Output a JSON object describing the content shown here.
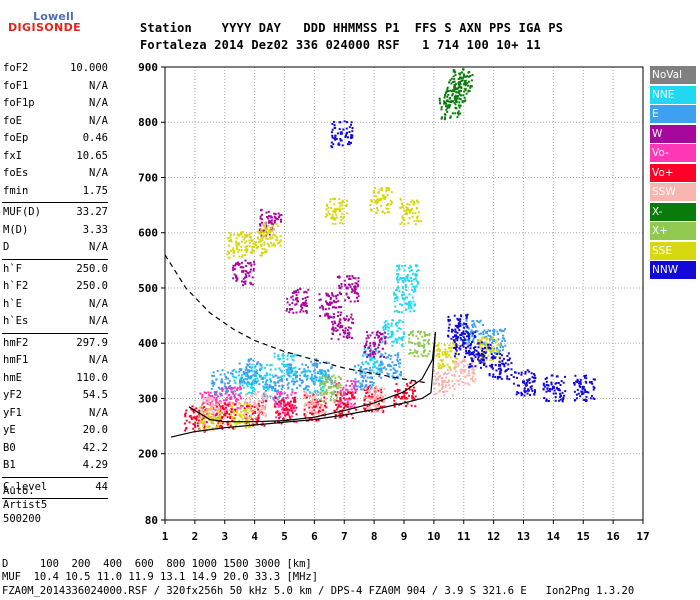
{
  "logo": {
    "top": "Lowell",
    "bottom": "DIGISONDE"
  },
  "header": {
    "line1": "Station    YYYY DAY   DDD HHMMSS P1  FFS S AXN PPS IGA PS",
    "line2": "Fortaleza 2014 Dez02 336 024000 RSF   1 714 100 10+ 11"
  },
  "params": [
    {
      "name": "foF2",
      "value": "10.000"
    },
    {
      "name": "foF1",
      "value": "N/A"
    },
    {
      "name": "foF1p",
      "value": "N/A"
    },
    {
      "name": "foE",
      "value": "N/A"
    },
    {
      "name": "foEp",
      "value": "0.46"
    },
    {
      "name": "fxI",
      "value": "10.65"
    },
    {
      "name": "foEs",
      "value": "N/A"
    },
    {
      "name": "fmin",
      "value": "1.75"
    },
    {
      "sep": true
    },
    {
      "name": "MUF(D)",
      "value": "33.27"
    },
    {
      "name": "M(D)",
      "value": "3.33"
    },
    {
      "name": "D",
      "value": "N/A"
    },
    {
      "sep": true
    },
    {
      "name": "h`F",
      "value": "250.0"
    },
    {
      "name": "h`F2",
      "value": "250.0"
    },
    {
      "name": "h`E",
      "value": "N/A"
    },
    {
      "name": "h`Es",
      "value": "N/A"
    },
    {
      "sep": true
    },
    {
      "name": "hmF2",
      "value": "297.9"
    },
    {
      "name": "hmF1",
      "value": "N/A"
    },
    {
      "name": "hmE",
      "value": "110.0"
    },
    {
      "name": "yF2",
      "value": "54.5"
    },
    {
      "name": "yF1",
      "value": "N/A"
    },
    {
      "name": "yE",
      "value": "20.0"
    },
    {
      "name": "B0",
      "value": "42.2"
    },
    {
      "name": "B1",
      "value": "4.29"
    },
    {
      "sep": true
    },
    {
      "name": "C-level",
      "value": "44"
    },
    {
      "sep": true
    }
  ],
  "auto": {
    "line1": "Auto:",
    "line2": "Artist5",
    "line3": "500200"
  },
  "legend": [
    {
      "label": "NoVal",
      "color": "#808080"
    },
    {
      "label": "NNE",
      "color": "#20d8f0"
    },
    {
      "label": "E",
      "color": "#3ea0ee"
    },
    {
      "label": "W",
      "color": "#a8079e"
    },
    {
      "label": "Vo-",
      "color": "#ff38b8"
    },
    {
      "label": "Vo+",
      "color": "#ff0028"
    },
    {
      "label": "SSW",
      "color": "#f7b6b0"
    },
    {
      "label": "X-",
      "color": "#0a7a0a"
    },
    {
      "label": "X+",
      "color": "#90c850"
    },
    {
      "label": "SSE",
      "color": "#d8d810"
    },
    {
      "label": "NNW",
      "color": "#1208d8"
    }
  ],
  "footer": {
    "line1": "D     100  200  400  600  800 1000 1500 3000 [km]",
    "line2": "MUF  10.4 10.5 11.0 11.9 13.1 14.9 20.0 33.3 [MHz]",
    "line3": "FZA0M_2014336024000.RSF / 320fx256h 50 kHz 5.0 km / DPS-4 FZA0M 904 / 3.9 S 321.6 E   Ion2Png 1.3.20"
  },
  "chart_data": {
    "type": "scatter",
    "xlim": [
      1,
      17
    ],
    "ylim": [
      80,
      900
    ],
    "x_ticks": [
      1,
      2,
      3,
      4,
      5,
      6,
      7,
      8,
      9,
      10,
      11,
      12,
      13,
      14,
      15,
      16,
      17
    ],
    "y_ticks": [
      80,
      200,
      300,
      400,
      500,
      600,
      700,
      800,
      900
    ],
    "grid": true,
    "series": [
      {
        "name": "NNE",
        "color": "#20d8f0",
        "points": [
          [
            3.6,
            330
          ],
          [
            4.2,
            340
          ],
          [
            5.0,
            360
          ],
          [
            6.0,
            330
          ],
          [
            7.9,
            370
          ],
          [
            8.6,
            420
          ],
          [
            9.0,
            480
          ],
          [
            9.1,
            520
          ]
        ]
      },
      {
        "name": "E",
        "color": "#3ea0ee",
        "points": [
          [
            2.9,
            330
          ],
          [
            3.8,
            350
          ],
          [
            4.6,
            320
          ],
          [
            5.4,
            340
          ],
          [
            6.2,
            350
          ],
          [
            7.6,
            340
          ],
          [
            8.5,
            360
          ],
          [
            11.3,
            420
          ],
          [
            12.0,
            405
          ]
        ]
      },
      {
        "name": "W",
        "color": "#a8079e",
        "points": [
          [
            3.6,
            530
          ],
          [
            4.5,
            620
          ],
          [
            5.4,
            480
          ],
          [
            6.5,
            470
          ],
          [
            6.9,
            430
          ],
          [
            7.1,
            500
          ],
          [
            8.0,
            400
          ]
        ]
      },
      {
        "name": "Vo-",
        "color": "#ff38b8",
        "points": [
          [
            2.5,
            290
          ],
          [
            3.2,
            300
          ],
          [
            5.0,
            290
          ],
          [
            7.0,
            310
          ]
        ]
      },
      {
        "name": "Vo+",
        "color": "#ff0028",
        "points": [
          [
            2.0,
            265
          ],
          [
            3.0,
            270
          ],
          [
            4.0,
            275
          ],
          [
            5.0,
            280
          ],
          [
            6.0,
            285
          ],
          [
            7.0,
            290
          ],
          [
            8.0,
            300
          ],
          [
            9.0,
            310
          ]
        ]
      },
      {
        "name": "SSW",
        "color": "#f7b6b0",
        "points": [
          [
            2.5,
            280
          ],
          [
            4.0,
            290
          ],
          [
            6.0,
            290
          ],
          [
            8.0,
            300
          ],
          [
            10.3,
            330
          ],
          [
            11.0,
            350
          ]
        ]
      },
      {
        "name": "X-",
        "color": "#0a7a0a",
        "points": [
          [
            10.5,
            830
          ],
          [
            10.7,
            860
          ],
          [
            10.9,
            880
          ]
        ]
      },
      {
        "name": "X+",
        "color": "#90c850",
        "points": [
          [
            6.5,
            320
          ],
          [
            9.5,
            400
          ]
        ]
      },
      {
        "name": "SSE",
        "color": "#d8d810",
        "points": [
          [
            3.4,
            580
          ],
          [
            4.0,
            580
          ],
          [
            4.5,
            600
          ],
          [
            6.7,
            640
          ],
          [
            8.2,
            660
          ],
          [
            9.2,
            640
          ],
          [
            2.5,
            265
          ],
          [
            3.5,
            270
          ],
          [
            10.4,
            380
          ],
          [
            11.8,
            390
          ]
        ]
      },
      {
        "name": "NNW",
        "color": "#1208d8",
        "points": [
          [
            6.9,
            780
          ],
          [
            10.8,
            430
          ],
          [
            11.0,
            400
          ],
          [
            11.5,
            380
          ],
          [
            12.2,
            360
          ],
          [
            13.0,
            330
          ],
          [
            14.0,
            320
          ],
          [
            15.0,
            320
          ]
        ]
      }
    ],
    "curves": [
      {
        "style": "dashed",
        "points": [
          [
            1.0,
            560
          ],
          [
            1.7,
            500
          ],
          [
            2.5,
            455
          ],
          [
            3.3,
            425
          ],
          [
            4.0,
            405
          ],
          [
            5.0,
            385
          ],
          [
            6.0,
            370
          ],
          [
            7.0,
            355
          ],
          [
            8.0,
            345
          ],
          [
            9.0,
            335
          ],
          [
            9.8,
            328
          ]
        ]
      },
      {
        "style": "solid",
        "points": [
          [
            1.2,
            230
          ],
          [
            2.0,
            240
          ],
          [
            3.0,
            247
          ],
          [
            4.0,
            252
          ],
          [
            5.0,
            257
          ],
          [
            6.0,
            262
          ],
          [
            7.0,
            270
          ],
          [
            8.0,
            280
          ],
          [
            9.0,
            292
          ],
          [
            9.6,
            300
          ],
          [
            9.9,
            310
          ]
        ]
      },
      {
        "style": "solid",
        "points": [
          [
            9.9,
            310
          ],
          [
            9.95,
            340
          ],
          [
            10.0,
            380
          ],
          [
            10.05,
            420
          ]
        ]
      },
      {
        "style": "solid",
        "points": [
          [
            1.8,
            285
          ],
          [
            2.5,
            262
          ],
          [
            3.0,
            258
          ],
          [
            4.0,
            258
          ],
          [
            5.0,
            260
          ],
          [
            6.0,
            266
          ],
          [
            7.0,
            278
          ],
          [
            8.0,
            292
          ],
          [
            9.0,
            312
          ],
          [
            9.6,
            335
          ],
          [
            9.95,
            370
          ],
          [
            10.05,
            420
          ]
        ]
      }
    ]
  }
}
